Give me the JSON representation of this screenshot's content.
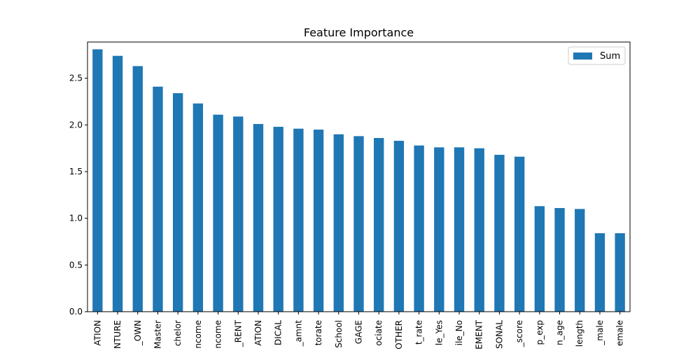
{
  "chart_data": {
    "type": "bar",
    "title": "Feature Importance",
    "xlabel": "",
    "ylabel": "",
    "ylim": [
      0,
      2.888
    ],
    "yticks": [
      0.0,
      0.5,
      1.0,
      1.5,
      2.0,
      2.5
    ],
    "ytick_labels": [
      "0.0",
      "0.5",
      "1.0",
      "1.5",
      "2.0",
      "2.5"
    ],
    "grid": false,
    "legend_position": "top-right",
    "series_color": "#1f77b4",
    "categories": [
      "ATION",
      "NTURE",
      "_OWN",
      "Master",
      "chelor",
      "ncome",
      "ncome",
      "_RENT",
      "ATION",
      "DICAL",
      "_amnt",
      "torate",
      "School",
      "GAGE",
      "ociate",
      "OTHER",
      "t_rate",
      "le_Yes",
      "ile_No",
      "EMENT",
      "SONAL",
      "_score",
      "p_exp",
      "n_age",
      "length",
      "_male",
      "emale"
    ],
    "series": [
      {
        "name": "Sum",
        "values": [
          2.81,
          2.74,
          2.63,
          2.41,
          2.34,
          2.23,
          2.11,
          2.09,
          2.01,
          1.98,
          1.96,
          1.95,
          1.9,
          1.88,
          1.86,
          1.83,
          1.78,
          1.76,
          1.76,
          1.75,
          1.68,
          1.66,
          1.13,
          1.11,
          1.1,
          0.84,
          0.84
        ]
      }
    ]
  }
}
